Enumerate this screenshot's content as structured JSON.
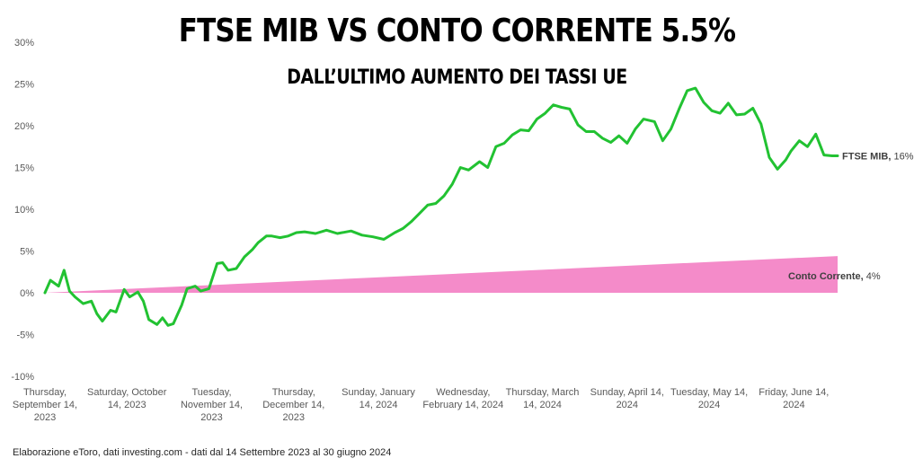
{
  "header": {
    "title": "FTSE MIB VS CONTO CORRENTE 5.5%",
    "subtitle": "DALL’ULTIMO AUMENTO DEI TASSI UE"
  },
  "footer": {
    "note": "Elaborazione eToro, dati investing.com - dati dal 14 Settembre 2023 al 30 giugno 2024"
  },
  "colors": {
    "ftse": "#22c232",
    "conto": "#f48bc9",
    "axis_text": "#595959"
  },
  "chart_data": {
    "type": "line",
    "title": "FTSE MIB VS CONTO CORRENTE 5.5%",
    "subtitle": "DALL’ULTIMO AUMENTO DEI TASSI UE",
    "ylim": [
      -10,
      30
    ],
    "yticks": [
      -10,
      -5,
      0,
      5,
      10,
      15,
      20,
      25,
      30
    ],
    "ytick_labels": [
      "-10%",
      "-5%",
      "0%",
      "5%",
      "10%",
      "15%",
      "20%",
      "25%",
      "30%"
    ],
    "x_start": "2023-09-14",
    "x_end": "2024-06-30",
    "xticks": [
      {
        "date": "2023-09-14",
        "lines": [
          "Thursday,",
          "September 14,",
          "2023"
        ]
      },
      {
        "date": "2023-10-14",
        "lines": [
          "Saturday, October",
          "14, 2023"
        ]
      },
      {
        "date": "2023-11-14",
        "lines": [
          "Tuesday,",
          "November 14,",
          "2023"
        ]
      },
      {
        "date": "2023-12-14",
        "lines": [
          "Thursday,",
          "December 14,",
          "2023"
        ]
      },
      {
        "date": "2024-01-14",
        "lines": [
          "Sunday, January",
          "14, 2024"
        ]
      },
      {
        "date": "2024-02-14",
        "lines": [
          "Wednesday,",
          "February 14, 2024"
        ]
      },
      {
        "date": "2024-03-14",
        "lines": [
          "Thursday, March",
          "14, 2024"
        ]
      },
      {
        "date": "2024-04-14",
        "lines": [
          "Sunday, April 14,",
          "2024"
        ]
      },
      {
        "date": "2024-05-14",
        "lines": [
          "Tuesday, May 14,",
          "2024"
        ]
      },
      {
        "date": "2024-06-14",
        "lines": [
          "Friday, June 14,",
          "2024"
        ]
      }
    ],
    "series": [
      {
        "name": "FTSE MIB",
        "label": "FTSE MIB, 16%",
        "type": "line",
        "x": [
          "2023-09-14",
          "2023-09-16",
          "2023-09-19",
          "2023-09-21",
          "2023-09-23",
          "2023-09-25",
          "2023-09-28",
          "2023-10-01",
          "2023-10-03",
          "2023-10-05",
          "2023-10-08",
          "2023-10-10",
          "2023-10-13",
          "2023-10-15",
          "2023-10-18",
          "2023-10-20",
          "2023-10-22",
          "2023-10-25",
          "2023-10-27",
          "2023-10-29",
          "2023-10-31",
          "2023-11-03",
          "2023-11-05",
          "2023-11-08",
          "2023-11-10",
          "2023-11-13",
          "2023-11-16",
          "2023-11-18",
          "2023-11-20",
          "2023-11-23",
          "2023-11-26",
          "2023-11-29",
          "2023-12-01",
          "2023-12-04",
          "2023-12-06",
          "2023-12-09",
          "2023-12-12",
          "2023-12-15",
          "2023-12-18",
          "2023-12-22",
          "2023-12-26",
          "2023-12-30",
          "2024-01-04",
          "2024-01-08",
          "2024-01-12",
          "2024-01-16",
          "2024-01-20",
          "2024-01-23",
          "2024-01-26",
          "2024-01-29",
          "2024-02-01",
          "2024-02-04",
          "2024-02-07",
          "2024-02-10",
          "2024-02-13",
          "2024-02-16",
          "2024-02-20",
          "2024-02-23",
          "2024-02-26",
          "2024-02-29",
          "2024-03-03",
          "2024-03-06",
          "2024-03-09",
          "2024-03-12",
          "2024-03-15",
          "2024-03-18",
          "2024-03-21",
          "2024-03-24",
          "2024-03-27",
          "2024-03-30",
          "2024-04-02",
          "2024-04-05",
          "2024-04-08",
          "2024-04-11",
          "2024-04-14",
          "2024-04-17",
          "2024-04-20",
          "2024-04-24",
          "2024-04-27",
          "2024-04-30",
          "2024-05-03",
          "2024-05-06",
          "2024-05-09",
          "2024-05-12",
          "2024-05-15",
          "2024-05-18",
          "2024-05-21",
          "2024-05-24",
          "2024-05-27",
          "2024-05-30",
          "2024-06-02",
          "2024-06-05",
          "2024-06-08",
          "2024-06-11",
          "2024-06-13",
          "2024-06-16",
          "2024-06-19",
          "2024-06-22",
          "2024-06-25",
          "2024-06-28",
          "2024-06-30"
        ],
        "y": [
          0.0,
          1.5,
          0.8,
          2.7,
          0.2,
          -0.5,
          -1.3,
          -1.0,
          -2.5,
          -3.4,
          -2.1,
          -2.3,
          0.4,
          -0.5,
          0.1,
          -1.0,
          -3.2,
          -3.8,
          -3.0,
          -3.9,
          -3.7,
          -1.5,
          0.5,
          0.8,
          0.2,
          0.5,
          3.5,
          3.6,
          2.7,
          2.9,
          4.3,
          5.2,
          6.0,
          6.8,
          6.8,
          6.6,
          6.8,
          7.2,
          7.3,
          7.1,
          7.5,
          7.1,
          7.4,
          6.9,
          6.7,
          6.4,
          7.2,
          7.7,
          8.5,
          9.5,
          10.5,
          10.7,
          11.6,
          13.0,
          15.0,
          14.7,
          15.7,
          15.0,
          17.5,
          17.9,
          18.9,
          19.5,
          19.4,
          20.8,
          21.5,
          22.5,
          22.2,
          22.0,
          20.1,
          19.3,
          19.3,
          18.5,
          18.0,
          18.8,
          17.9,
          19.6,
          20.8,
          20.5,
          18.2,
          19.6,
          22.0,
          24.2,
          24.5,
          22.8,
          21.8,
          21.5,
          22.7,
          21.3,
          21.4,
          22.1,
          20.2,
          16.2,
          14.8,
          15.9,
          17.0,
          18.2,
          17.5,
          19.0,
          16.5,
          16.4,
          16.4
        ]
      },
      {
        "name": "Conto Corrente",
        "label": "Conto Corrente, 4%",
        "type": "area",
        "x": [
          "2023-09-14",
          "2024-06-30"
        ],
        "y": [
          0.0,
          4.4
        ]
      }
    ],
    "grid": false,
    "legend": "none (inline labels at right end)"
  }
}
